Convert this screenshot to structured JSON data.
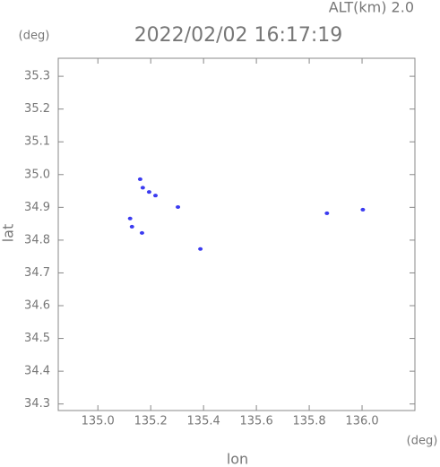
{
  "chart_data": {
    "type": "scatter",
    "title": "2022/02/02 16:17:19",
    "annotation": "ALT(km) 2.0",
    "x_label": "lon",
    "y_label": "lat",
    "x_unit": "(deg)",
    "y_unit": "(deg)",
    "color": "#3b3bf0",
    "x": [
      135.16,
      135.17,
      135.194,
      135.218,
      135.303,
      135.122,
      135.129,
      135.167,
      135.388,
      135.867,
      136.003
    ],
    "y": [
      34.986,
      34.96,
      34.947,
      34.936,
      34.901,
      34.866,
      34.841,
      34.822,
      34.773,
      34.882,
      34.893
    ],
    "xlim": [
      134.85,
      136.2
    ],
    "ylim": [
      34.28,
      35.355
    ],
    "xticks": [
      {
        "value": 135,
        "label": "135.0"
      },
      135.2,
      135.4,
      135.6,
      135.8,
      {
        "value": 136,
        "label": "136.0"
      }
    ],
    "yticks": [
      34.3,
      34.4,
      34.5,
      34.6,
      34.7,
      34.8,
      34.9,
      {
        "value": 35,
        "label": "35.0"
      },
      35.1,
      35.2,
      35.3
    ]
  }
}
